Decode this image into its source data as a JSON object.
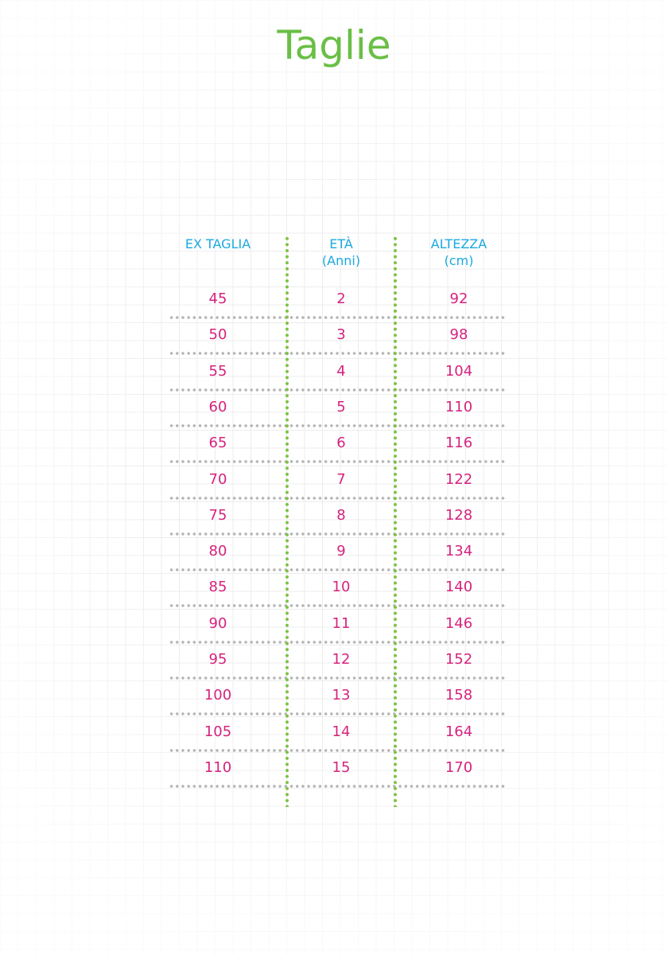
{
  "title": "Taglie",
  "headers": [
    {
      "line1": "EX TAGLIA",
      "line2": ""
    },
    {
      "line1": "ETÀ",
      "line2": "(Anni)"
    },
    {
      "line1": "ALTEZZA",
      "line2": "(cm)"
    }
  ],
  "rows": [
    [
      "45",
      "2",
      "92"
    ],
    [
      "50",
      "3",
      "98"
    ],
    [
      "55",
      "4",
      "104"
    ],
    [
      "60",
      "5",
      "110"
    ],
    [
      "65",
      "6",
      "116"
    ],
    [
      "70",
      "7",
      "122"
    ],
    [
      "75",
      "8",
      "128"
    ],
    [
      "80",
      "9",
      "134"
    ],
    [
      "85",
      "10",
      "140"
    ],
    [
      "90",
      "11",
      "146"
    ],
    [
      "95",
      "12",
      "152"
    ],
    [
      "100",
      "13",
      "158"
    ],
    [
      "105",
      "14",
      "164"
    ],
    [
      "110",
      "15",
      "170"
    ]
  ],
  "colors": {
    "title": "#6abf45",
    "header": "#1aa9df",
    "value": "#d6237e",
    "column_divider": "#7cc242",
    "row_divider": "#b5b5b5"
  }
}
